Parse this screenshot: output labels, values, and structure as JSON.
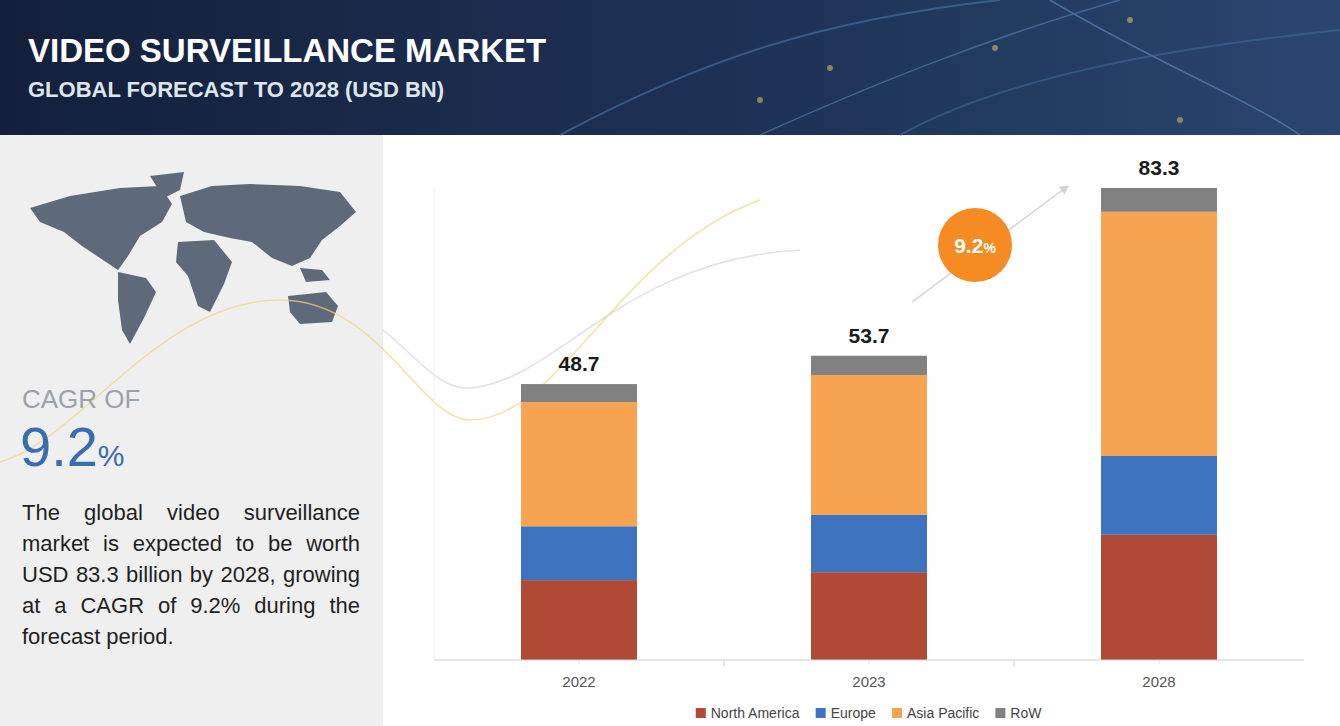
{
  "chart_data": {
    "type": "bar",
    "title": "VIDEO SURVEILLANCE MARKET",
    "subtitle": "GLOBAL FORECAST TO 2028 (USD BN)",
    "stacked": true,
    "categories": [
      "2022",
      "2023",
      "2028"
    ],
    "series": [
      {
        "name": "North America",
        "color": "#b14a35",
        "values": [
          14.1,
          15.5,
          22.1
        ]
      },
      {
        "name": "Europe",
        "color": "#3d73bf",
        "values": [
          9.5,
          10.1,
          13.9
        ]
      },
      {
        "name": "Asia Pacific",
        "color": "#f6a451",
        "values": [
          21.9,
          24.7,
          43.1
        ]
      },
      {
        "name": "RoW",
        "color": "#818181",
        "values": [
          3.2,
          3.4,
          4.2
        ]
      }
    ],
    "totals": [
      48.7,
      53.7,
      83.3
    ],
    "ylim": [
      0,
      83.3
    ],
    "tick_labels": "x",
    "grid": false,
    "legend": "bottom",
    "annotations": [
      {
        "text": "9.2%"
      }
    ]
  },
  "side_panel": {
    "cagr_label": "CAGR OF",
    "cagr": "9.2%",
    "description": "The global video surveillance market is expected to be worth USD 83.3 billion by 2028, growing at a CAGR of 9.2% during the forecast period."
  }
}
